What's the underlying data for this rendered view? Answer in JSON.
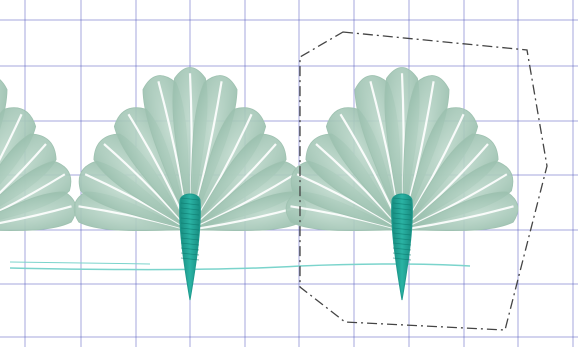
{
  "canvas": {
    "background": "#ffffff",
    "grid_color": "#5a5fbf",
    "grid_shown": true
  },
  "design": {
    "motif": "palm-fan",
    "leaf_color": "#9fc2b1",
    "leaf_vein_color": "#ffffff",
    "stem_color": "#1f9a8d",
    "baseline_color": "#7bd4cc",
    "repeat_count": 2
  },
  "selection": {
    "shape": "polygon",
    "stroke_color": "#444444",
    "style": "dash-dot"
  }
}
